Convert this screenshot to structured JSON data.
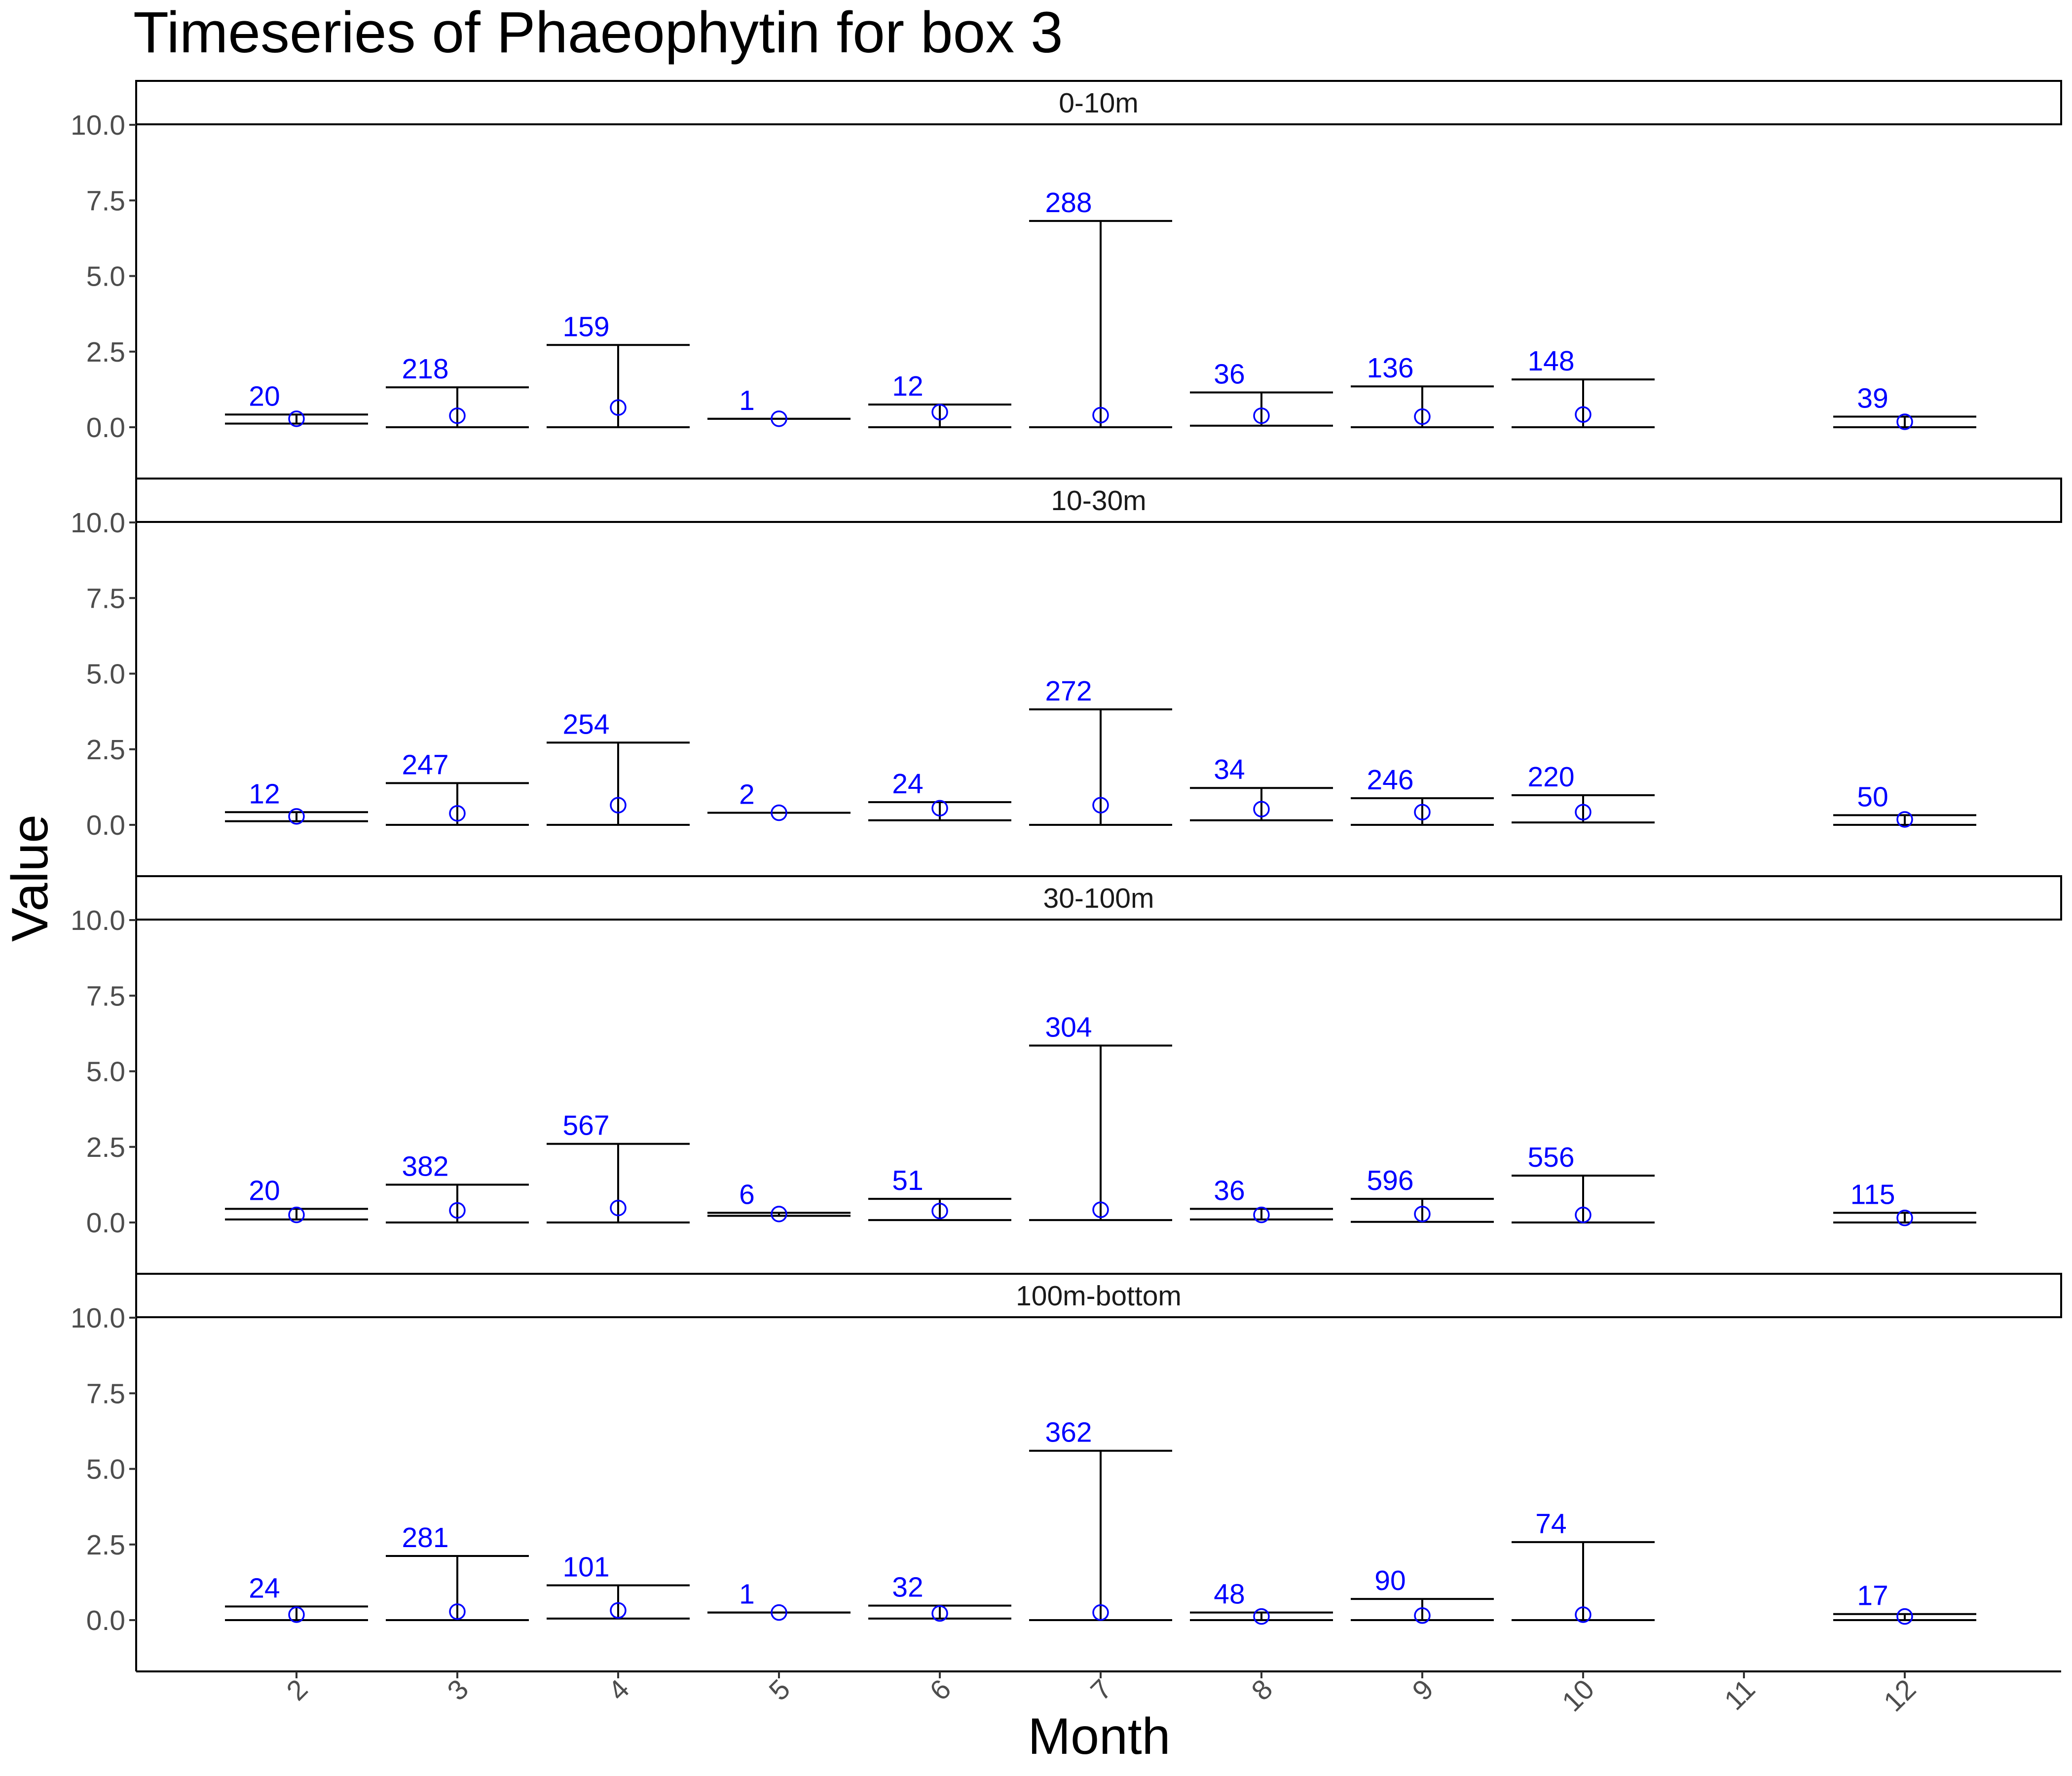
{
  "title": "Timeseries of  Phaeophytin  for box  3",
  "colors": {
    "count_label": "#0000ff",
    "point": "#0000ff",
    "errorbar": "#000000",
    "axis": "#000000"
  },
  "chart_data": {
    "type": "errorbar-with-points",
    "title": "Timeseries of  Phaeophytin  for box  3",
    "xlabel": "Month",
    "ylabel": "Value",
    "x_ticks": [
      2,
      3,
      4,
      5,
      6,
      7,
      8,
      9,
      10,
      11,
      12
    ],
    "y_ticks": [
      "0.0",
      "2.5",
      "5.0",
      "7.5",
      "10.0"
    ],
    "y_tick_values": [
      0,
      2.5,
      5,
      7.5,
      10
    ],
    "ylim": [
      -0.5,
      10.8
    ],
    "xlim": [
      1,
      13
    ],
    "grid": false,
    "x_tick_label_angle": -45,
    "panels": [
      {
        "label": "0-10m",
        "points": [
          {
            "month": 2,
            "value": 0.28,
            "lower": 0.12,
            "upper": 0.42,
            "n": "20"
          },
          {
            "month": 3,
            "value": 0.38,
            "lower": 0.0,
            "upper": 1.32,
            "n": "218"
          },
          {
            "month": 4,
            "value": 0.65,
            "lower": 0.0,
            "upper": 2.72,
            "n": "159"
          },
          {
            "month": 5,
            "value": 0.28,
            "lower": 0.28,
            "upper": 0.28,
            "n": "1"
          },
          {
            "month": 6,
            "value": 0.5,
            "lower": 0.0,
            "upper": 0.75,
            "n": "12"
          },
          {
            "month": 7,
            "value": 0.4,
            "lower": 0.0,
            "upper": 6.82,
            "n": "288"
          },
          {
            "month": 8,
            "value": 0.38,
            "lower": 0.05,
            "upper": 1.15,
            "n": "36"
          },
          {
            "month": 9,
            "value": 0.35,
            "lower": 0.0,
            "upper": 1.35,
            "n": "136"
          },
          {
            "month": 10,
            "value": 0.42,
            "lower": 0.0,
            "upper": 1.58,
            "n": "148"
          },
          {
            "month": 12,
            "value": 0.18,
            "lower": 0.0,
            "upper": 0.35,
            "n": "39"
          }
        ]
      },
      {
        "label": "10-30m",
        "points": [
          {
            "month": 2,
            "value": 0.28,
            "lower": 0.12,
            "upper": 0.42,
            "n": "12"
          },
          {
            "month": 3,
            "value": 0.38,
            "lower": 0.0,
            "upper": 1.38,
            "n": "247"
          },
          {
            "month": 4,
            "value": 0.65,
            "lower": 0.0,
            "upper": 2.72,
            "n": "254"
          },
          {
            "month": 5,
            "value": 0.4,
            "lower": 0.4,
            "upper": 0.4,
            "n": "2"
          },
          {
            "month": 6,
            "value": 0.55,
            "lower": 0.15,
            "upper": 0.75,
            "n": "24"
          },
          {
            "month": 7,
            "value": 0.65,
            "lower": 0.0,
            "upper": 3.82,
            "n": "272"
          },
          {
            "month": 8,
            "value": 0.52,
            "lower": 0.15,
            "upper": 1.22,
            "n": "34"
          },
          {
            "month": 9,
            "value": 0.42,
            "lower": 0.0,
            "upper": 0.88,
            "n": "246"
          },
          {
            "month": 10,
            "value": 0.42,
            "lower": 0.08,
            "upper": 0.98,
            "n": "220"
          },
          {
            "month": 12,
            "value": 0.18,
            "lower": 0.0,
            "upper": 0.32,
            "n": "50"
          }
        ]
      },
      {
        "label": "30-100m",
        "points": [
          {
            "month": 2,
            "value": 0.25,
            "lower": 0.1,
            "upper": 0.45,
            "n": "20"
          },
          {
            "month": 3,
            "value": 0.4,
            "lower": 0.0,
            "upper": 1.25,
            "n": "382"
          },
          {
            "month": 4,
            "value": 0.48,
            "lower": 0.0,
            "upper": 2.6,
            "n": "567"
          },
          {
            "month": 5,
            "value": 0.28,
            "lower": 0.22,
            "upper": 0.32,
            "n": "6"
          },
          {
            "month": 6,
            "value": 0.38,
            "lower": 0.08,
            "upper": 0.78,
            "n": "51"
          },
          {
            "month": 7,
            "value": 0.42,
            "lower": 0.08,
            "upper": 5.85,
            "n": "304"
          },
          {
            "month": 8,
            "value": 0.25,
            "lower": 0.1,
            "upper": 0.45,
            "n": "36"
          },
          {
            "month": 9,
            "value": 0.28,
            "lower": 0.02,
            "upper": 0.78,
            "n": "596"
          },
          {
            "month": 10,
            "value": 0.25,
            "lower": 0.0,
            "upper": 1.55,
            "n": "556"
          },
          {
            "month": 12,
            "value": 0.15,
            "lower": 0.0,
            "upper": 0.32,
            "n": "115"
          }
        ]
      },
      {
        "label": "100m-bottom",
        "points": [
          {
            "month": 2,
            "value": 0.18,
            "lower": 0.0,
            "upper": 0.45,
            "n": "24"
          },
          {
            "month": 3,
            "value": 0.28,
            "lower": 0.0,
            "upper": 2.12,
            "n": "281"
          },
          {
            "month": 4,
            "value": 0.32,
            "lower": 0.05,
            "upper": 1.15,
            "n": "101"
          },
          {
            "month": 5,
            "value": 0.25,
            "lower": 0.25,
            "upper": 0.25,
            "n": "1"
          },
          {
            "month": 6,
            "value": 0.22,
            "lower": 0.05,
            "upper": 0.48,
            "n": "32"
          },
          {
            "month": 7,
            "value": 0.25,
            "lower": 0.0,
            "upper": 5.6,
            "n": "362"
          },
          {
            "month": 8,
            "value": 0.12,
            "lower": 0.0,
            "upper": 0.25,
            "n": "48"
          },
          {
            "month": 9,
            "value": 0.15,
            "lower": 0.0,
            "upper": 0.7,
            "n": "90"
          },
          {
            "month": 10,
            "value": 0.18,
            "lower": 0.0,
            "upper": 2.58,
            "n": "74"
          },
          {
            "month": 12,
            "value": 0.12,
            "lower": 0.0,
            "upper": 0.2,
            "n": "17"
          }
        ]
      }
    ]
  }
}
